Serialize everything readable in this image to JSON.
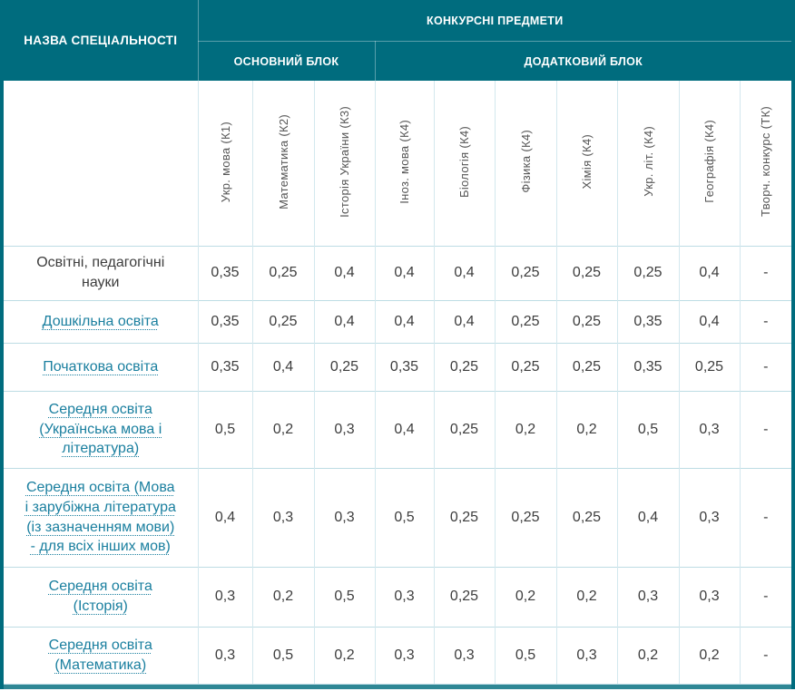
{
  "theme": {
    "teal": "#006c7e",
    "link_color": "#1a7f9f",
    "text_color": "#3d3d3d",
    "grid_vertical": "#d3e8ee",
    "grid_horizontal": "#bddce4"
  },
  "header": {
    "name_column_title": "НАЗВА СПЕЦІАЛЬНОСТІ",
    "group_title": "КОНКУРСНІ ПРЕДМЕТИ",
    "main_block_title": "ОСНОВНИЙ БЛОК",
    "additional_block_title": "ДОДАТКОВИЙ БЛОК",
    "group_span": "10",
    "main_block_span": "3",
    "additional_block_span": "7"
  },
  "columns": [
    "Укр. мова (К1)",
    "Математика (К2)",
    "Історія України (К3)",
    "Іноз. мова (К4)",
    "Біологія (К4)",
    "Фізика (К4)",
    "Хімія (К4)",
    "Укр. літ. (К4)",
    "Географія (К4)",
    "Творч. конкурс (ТК)"
  ],
  "rows": [
    {
      "name": "Освітні, педагогічні науки",
      "link": false,
      "values": [
        "0,35",
        "0,25",
        "0,4",
        "0,4",
        "0,4",
        "0,25",
        "0,25",
        "0,25",
        "0,4",
        "-"
      ]
    },
    {
      "name": "Дошкільна освіта",
      "link": true,
      "values": [
        "0,35",
        "0,25",
        "0,4",
        "0,4",
        "0,4",
        "0,25",
        "0,25",
        "0,35",
        "0,4",
        "-"
      ]
    },
    {
      "name": "Початкова освіта",
      "link": true,
      "values": [
        "0,35",
        "0,4",
        "0,25",
        "0,35",
        "0,25",
        "0,25",
        "0,25",
        "0,35",
        "0,25",
        "-"
      ]
    },
    {
      "name": "Середня освіта (Українська мова і література)",
      "link": true,
      "values": [
        "0,5",
        "0,2",
        "0,3",
        "0,4",
        "0,25",
        "0,2",
        "0,2",
        "0,5",
        "0,3",
        "-"
      ]
    },
    {
      "name": "Середня освіта (Мова і зарубіжна література (із зазначенням мови) - для всіх інших мов)",
      "link": true,
      "values": [
        "0,4",
        "0,3",
        "0,3",
        "0,5",
        "0,25",
        "0,25",
        "0,25",
        "0,4",
        "0,3",
        "-"
      ]
    },
    {
      "name": "Середня освіта (Історія)",
      "link": true,
      "values": [
        "0,3",
        "0,2",
        "0,5",
        "0,3",
        "0,25",
        "0,2",
        "0,2",
        "0,3",
        "0,3",
        "-"
      ]
    },
    {
      "name": "Середня освіта (Математика)",
      "link": true,
      "values": [
        "0,3",
        "0,5",
        "0,2",
        "0,3",
        "0,3",
        "0,5",
        "0,3",
        "0,2",
        "0,2",
        "-"
      ]
    }
  ]
}
